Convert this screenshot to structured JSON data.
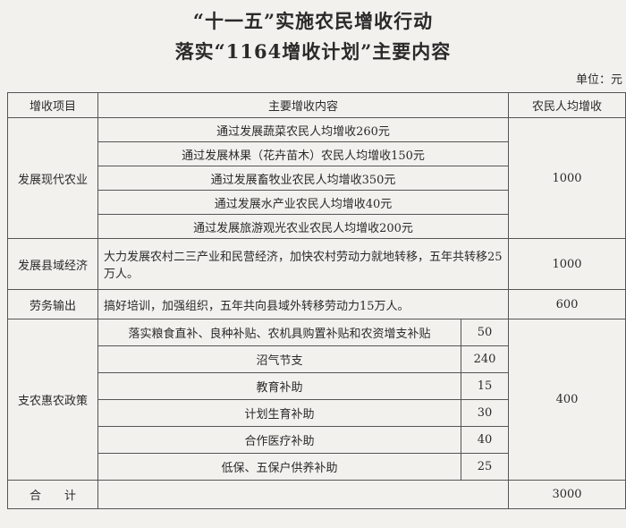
{
  "title_line1": "“十一五”实施农民增收行动",
  "title_line2": "落实“1164增收计划”主要内容",
  "unit": "单位：元",
  "headers": [
    "增收项目",
    "主要增收内容",
    "农民人均增收"
  ],
  "sections": {
    "agriculture": {
      "name": "发展现代农业",
      "items": [
        "通过发展蔬菜农民人均增收260元",
        "通过发展林果（花卉苗木）农民人均增收150元",
        "通过发展畜牧业农民人均增收350元",
        "通过发展水产业农民人均增收40元",
        "通过发展旅游观光农业农民人均增收200元"
      ],
      "amount": "1000"
    },
    "county": {
      "name": "发展县域经济",
      "content": "大力发展农村二三产业和民营经济，加快农村劳动力就地转移，五年共转移25万人。",
      "amount": "1000"
    },
    "labor": {
      "name": "劳务输出",
      "content": "搞好培训，加强组织，五年共向县域外转移劳动力15万人。",
      "amount": "600"
    },
    "policy": {
      "name": "支农惠农政策",
      "items": [
        {
          "label": "落实粮食直补、良种补贴、农机具购置补贴和农资增支补贴",
          "value": "50"
        },
        {
          "label": "沼气节支",
          "value": "240"
        },
        {
          "label": "教育补助",
          "value": "15"
        },
        {
          "label": "计划生育补助",
          "value": "30"
        },
        {
          "label": "合作医疗补助",
          "value": "40"
        },
        {
          "label": "低保、五保户供养补助",
          "value": "25"
        }
      ],
      "amount": "400"
    },
    "total": {
      "name": "合　　计",
      "amount": "3000"
    }
  }
}
